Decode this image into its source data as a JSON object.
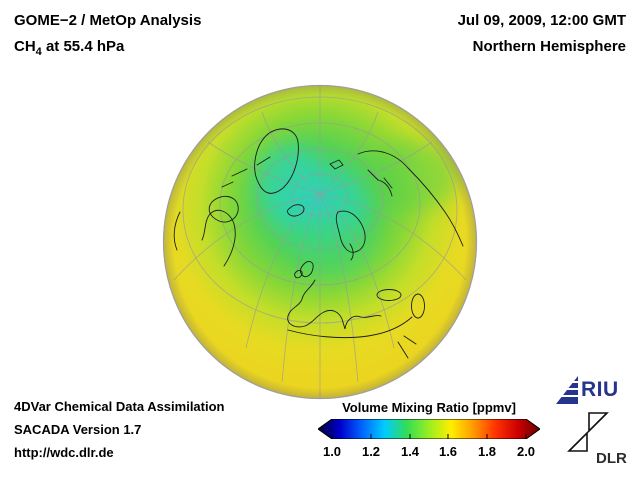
{
  "header": {
    "analysis_title": "GOME−2 / MetOp Analysis",
    "species_prefix": "CH",
    "species_subscript": "4",
    "species_suffix": " at 55.4 hPa",
    "datetime": "Jul 09, 2009, 12:00 GMT",
    "hemisphere": "Northern Hemisphere"
  },
  "footer": {
    "line1": "4DVar Chemical Data Assimilation",
    "line2": "SACADA Version 1.7",
    "line3": "http://wdc.dlr.de"
  },
  "colorbar": {
    "title": "Volume Mixing Ratio [ppmv]",
    "ticks": [
      "1.0",
      "1.2",
      "1.4",
      "1.6",
      "1.8",
      "2.0"
    ],
    "min": 1.0,
    "max": 2.0,
    "colors": [
      "#000033",
      "#0000cc",
      "#0066ff",
      "#00ccff",
      "#33dd55",
      "#99ee22",
      "#ffee00",
      "#ff9900",
      "#ff3300",
      "#cc0000",
      "#660000"
    ]
  },
  "logos": {
    "riu_text": "RIU",
    "dlr_text": "DLR"
  },
  "map_colors": {
    "low_pole": "#2ed2b6",
    "mid": "#55d254",
    "high_lowlat": "#ecd31e"
  },
  "chart_data": {
    "type": "heatmap",
    "title": "GOME−2 / MetOp Analysis — CH4 at 55.4 hPa",
    "datetime": "Jul 09, 2009, 12:00 GMT",
    "region": "Northern Hemisphere",
    "projection": "orthographic (polar view of Northern Hemisphere)",
    "colorbar_label": "Volume Mixing Ratio [ppmv]",
    "colorbar_range": [
      1.0,
      2.0
    ],
    "colorbar_ticks": [
      1.0,
      1.2,
      1.4,
      1.6,
      1.8,
      2.0
    ],
    "values_summary": "Approx. 1.2–1.4 ppmv (cyan/green) over the polar cap and North Atlantic/Scandinavia, ~1.5 ppmv (green-yellow) at mid-latitudes, ~1.6–1.7 ppmv (yellow) toward low latitudes at the globe rim"
  }
}
